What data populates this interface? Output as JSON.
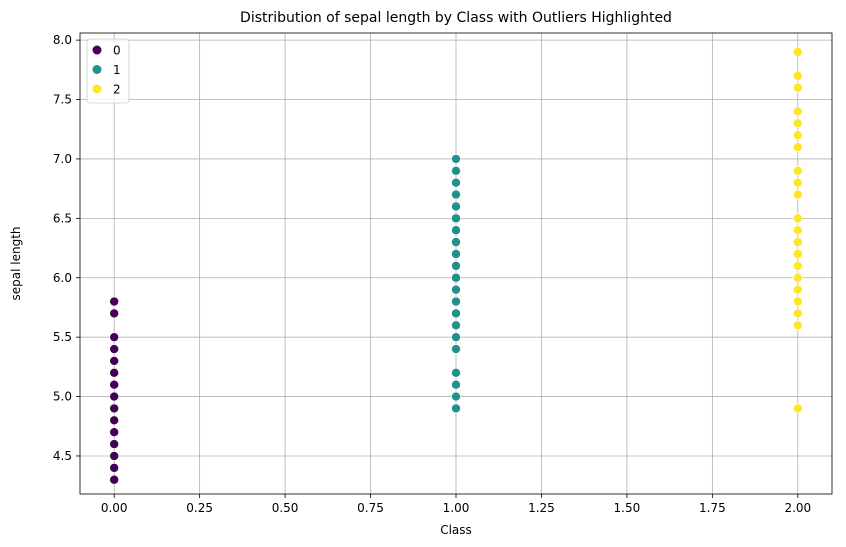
{
  "chart_data": {
    "type": "scatter",
    "title": "Distribution of sepal length by Class with Outliers Highlighted",
    "xlabel": "Class",
    "ylabel": "sepal length",
    "xlim": [
      -0.1,
      2.1
    ],
    "ylim": [
      4.18,
      8.06
    ],
    "xticks": [
      0.0,
      0.25,
      0.5,
      0.75,
      1.0,
      1.25,
      1.5,
      1.75,
      2.0
    ],
    "xtick_labels": [
      "0.00",
      "0.25",
      "0.50",
      "0.75",
      "1.00",
      "1.25",
      "1.50",
      "1.75",
      "2.00"
    ],
    "yticks": [
      4.5,
      5.0,
      5.5,
      6.0,
      6.5,
      7.0,
      7.5,
      8.0
    ],
    "ytick_labels": [
      "4.5",
      "5.0",
      "5.5",
      "6.0",
      "6.5",
      "7.0",
      "7.5",
      "8.0"
    ],
    "grid": true,
    "legend": {
      "placement": "upper-left"
    },
    "series": [
      {
        "name": "0",
        "color": "#440154",
        "x": 0,
        "y": [
          4.3,
          4.4,
          4.5,
          4.6,
          4.7,
          4.8,
          4.9,
          5.0,
          5.1,
          5.2,
          5.3,
          5.4,
          5.5,
          5.7,
          5.8
        ]
      },
      {
        "name": "1",
        "color": "#21918c",
        "x": 1,
        "y": [
          4.9,
          5.0,
          5.1,
          5.2,
          5.4,
          5.5,
          5.6,
          5.7,
          5.8,
          5.9,
          6.0,
          6.1,
          6.2,
          6.3,
          6.4,
          6.5,
          6.6,
          6.7,
          6.8,
          6.9,
          7.0
        ]
      },
      {
        "name": "2",
        "color": "#fde725",
        "x": 2,
        "y": [
          4.9,
          5.6,
          5.7,
          5.8,
          5.9,
          6.0,
          6.1,
          6.2,
          6.3,
          6.4,
          6.5,
          6.7,
          6.8,
          6.9,
          7.1,
          7.2,
          7.3,
          7.4,
          7.6,
          7.7,
          7.9
        ]
      }
    ]
  }
}
